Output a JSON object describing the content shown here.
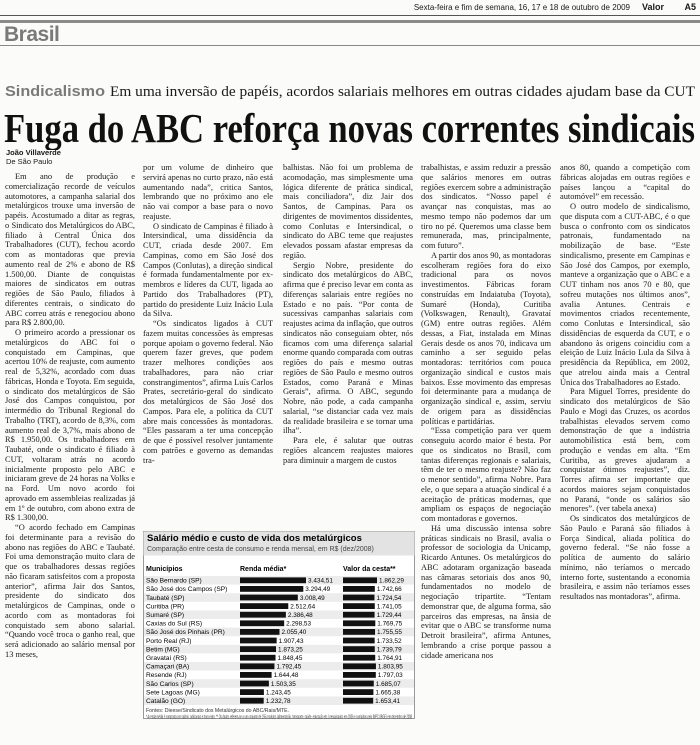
{
  "header": {
    "dateline": "Sexta-feira e fim de semana, 16, 17 e 18 de outubro de 2009",
    "paper": "Valor",
    "page": "A5"
  },
  "section": "Brasil",
  "article": {
    "kicker": "Sindicalismo",
    "deck": "Em uma inversão de papéis, acordos salariais melhores em outras cidades ajudam base da CUT",
    "headline": "Fuga do ABC reforça novas correntes sindicais",
    "author": "João Villaverde",
    "location": "De São Paulo",
    "columns": [
      [
        "Em ano de produção e comercialização recorde de veículos automotores, a campanha salarial dos metalúrgicos trouxe uma inversão de papéis. Acostumado a ditar as regras, o Sindicato dos Metalúrgicos do ABC, filiado à Central Única dos Trabalhadores (CUT), fechou acordo com as montadoras que previa aumento real de 2% e abono de R$ 1.500,00. Diante de conquistas maiores de sindicatos em outras regiões de São Paulo, filiados à diferentes centrais, o sindicato do ABC correu atrás e renegociou abono para R$ 2.800,00.",
        "O primeiro acordo a pressionar os metalúrgicos do ABC foi o conquistado em Campinas, que acertou 10% de reajuste, com aumento real de 5,32%, acordado com duas fábricas, Honda e Toyota. Em seguida, o sindicato dos metalúrgicos de São José dos Campos conquistou, por intermédio do Tribunal Regional do Trabalho (TRT), acordo de 8,3%, com aumento real de 3,7%, mais abono de R$ 1.950,00. Os trabalhadores em Taubaté, onde o sindicato é filiado à CUT, voltaram atrás no acordo inicialmente proposto pelo ABC e iniciaram greve de 24 horas na Volks e na Ford. Um novo acordo foi aprovado em assembleias realizadas já em 1º de outubro, com abono extra de R$ 1.300,00.",
        "“O acordo fechado em Campinas foi determinante para a revisão do abono nas regiões do ABC e Taubaté. Foi uma demonstração muito clara de que os trabalhadores dessas regiões não ficaram satisfeitos com a proposta anterior”, afirma Jair dos Santos, presidente do sindicato dos metalúrgicos de Campinas, onde o acordo com as montadoras foi conquistado sem abono salarial. “Quando você troca o ganho real, que será adicionado ao salário mensal por 13 meses,"
      ],
      [
        "por um volume de dinheiro que servirá apenas no curto prazo, não está aumentando nada”, critica Santos, lembrando que no próximo ano ele não vai compor a base para o novo reajuste.",
        "O sindicato de Campinas é filiado à Intersindical, uma dissidência da CUT, criada desde 2007. Em Campinas, como em São José dos Campos (Conlutas), a direção sindical é formada fundamentalmente por ex-membros e líderes da CUT, ligada ao Partido dos Trabalhadores (PT), partido do presidente Luiz Inácio Lula da Silva.",
        "“Os sindicatos ligados à CUT fazem muitas concessões às empresas porque apoiam o governo federal. Não querem fazer greves, que podem trazer melhores condições aos trabalhadores, para não criar constrangimentos”, afirma Luís Carlos Prates, secretário-geral do sindicato dos metalúrgicos de São José dos Campos. Para ele, a política da CUT abre mais concessões às montadoras. “Eles passaram a ter uma concepção de que é possível resolver juntamente com patrões e governo as demandas tra-"
      ],
      [
        "balhistas. Não foi um problema de acomodação, mas simplesmente uma lógica diferente de prática sindical, mais conciliadora”, diz Jair dos Santos, de Campinas. Para os dirigentes de movimentos dissidentes, como Conlutas e Intersindical, o sindicato do ABC teme que reajustes elevados possam afastar empresas da região.",
        "Sergio Nobre, presidente do sindicato dos metalúrgicos do ABC, afirma que é preciso levar em conta as diferenças salariais entre regiões no Estado e no país. “Por conta de sucessivas campanhas salariais com reajustes acima da inflação, que outros sindicatos não conseguiam obter, nós ficamos com uma diferença salarial enorme quando comparada com outras regiões do país e mesmo outras regiões de São Paulo e mesmo outros Estados, como Paraná e Minas Gerais”, afirma. O ABC, segundo Nobre, não pode, a cada campanha salarial, “se distanciar cada vez mais da realidade brasileira e se tornar uma ilha”.",
        "Para ele, é salutar que outras regiões alcancem reajustes maiores para diminuir a margem de custos"
      ],
      [
        "trabalhistas, e assim reduzir a pressão que salários menores em outras regiões exercem sobre a administração dos sindicatos. “Nosso papel é avançar nas conquistas, mas ao mesmo tempo não podemos dar um tiro no pé. Queremos uma classe bem remunerada, mas, principalmente, com futuro”.",
        "A partir dos anos 90, as montadoras escolheram regiões fora do eixo tradicional para os novos investimentos. Fábricas foram construídas em Indaiatuba (Toyota), Sumaré (Honda), Curitiba (Volkswagen, Renault), Gravataí (GM) entre outras regiões. Além dessas, a Fiat, instalada em Minas Gerais desde os anos 70, indicava um caminho a ser seguido pelas montadoras: territórios com pouca organização sindical e custos mais baixos. Esse movimento das empresas foi determinante para a mudança de organização sindical e, assim, serviu de origem para as dissidências políticas e partidárias.",
        "“Essa competição para ver quem conseguiu acordo maior é besta. Por que os sindicatos no Brasil, com tantas diferenças regionais e salariais, têm de ter o mesmo reajuste? Não faz o menor sentido”, afirma Nobre. Para ele, o que separa a atuação sindical é a aceitação de práticas modernas, que ampliam os espaços de negociação com montadoras e governos.",
        "Há uma discussão intensa sobre práticas sindicais no Brasil, avalia o professor de sociologia da Unicamp, Ricardo Antunes. Os metalúrgicos do ABC adotaram organização baseada nas câmaras setoriais dos anos 90, fundamentados no modelo de negociação tripartite. “Tentam demonstrar que, de alguma forma, são parceiros das empresas, na ânsia de evitar que o ABC se transforme numa Detroit brasileira”, afirma Antunes, lembrando a crise porque passou a cidade americana nos"
      ],
      [
        "anos 80, quando a competição com fábricas alojadas em outras regiões e países lançou a “capital do automóvel” em recessão.",
        "O outro modelo de sindicalismo, que disputa com a CUT-ABC, é o que busca o confronto com os sindicatos patronais, fundamentado na mobilização de base. “Este sindicalismo, presente em Campinas e São José dos Campos, por exemplo, manteve a organização que o ABC e a CUT tinham nos anos 70 e 80, que sofreu mutações nos últimos anos”, avalia Antunes. Centrais e movimentos criados recentemente, como Conlutas e Intersindical, são dissidências de esquerda da CUT, e o abandono às origens coincidiu com a eleição de Luiz Inácio Lula da Silva à presidência da República, em 2002, que atrelou ainda mais a Central Única dos Trabalhadores ao Estado.",
        "Para Miguel Torres, presidente do sindicato dos metalúrgicos de São Paulo e Mogi das Cruzes, os acordos trabalhistas elevados servem como demonstração de que a indústria automobilística está bem, com produção e vendas em alta. “Em Curitiba, as greves ajudaram a conquistar ótimos reajustes”, diz. Torres afirma ser importante que acordos maiores sejam conquistados no Paraná, “onde os salários são menores”. (ver tabela anexa)",
        "Os sindicatos dos metalúrgicos de São Paulo e Paraná são filiados à Força Sindical, aliada política do governo federal. “Se não fosse a política de aumento do salário mínimo, não teríamos o mercado interno forte, sustentando a economia brasileira, e assim não teríamos esses resultados nas montadoras”, afirma."
      ]
    ]
  },
  "infographic": {
    "title": "Salário médio e custo de vida dos metalúrgicos",
    "subtitle": "Comparação entre cesta de consumo e renda mensal, em R$ (dez/2008)",
    "headers": [
      "Municípios",
      "Renda média*",
      "Valor da cesta**"
    ],
    "categories": [
      "São Bernardo (SP)",
      "São José dos Campos (SP)",
      "Taubaté (SP)",
      "Curitiba (PR)",
      "Sumaré (SP)",
      "Caxias do Sul (RS)",
      "São José dos Pinhais (PR)",
      "Porto Real (RJ)",
      "Betim (MG)",
      "Gravataí (RS)",
      "Camaçari (BA)",
      "Resende (RJ)",
      "São Carlos (SP)",
      "Sete Lagoas (MG)",
      "Catalão (GO)"
    ],
    "income": {
      "color": "#111111",
      "values": [
        3434.51,
        3294.49,
        3008.49,
        2512.64,
        2386.48,
        2298.53,
        2055.4,
        1907.43,
        1873.25,
        1848.45,
        1792.45,
        1644.48,
        1503.35,
        1243.45,
        1232.78
      ],
      "value_labels": [
        "3.434,51",
        "3.294,49",
        "3.008,49",
        "2.512,64",
        "2.386,48",
        "2.298,53",
        "2.055,40",
        "1.907,43",
        "1.873,25",
        "1.848,45",
        "1.792,45",
        "1.644,48",
        "1.503,35",
        "1.243,45",
        "1.232,78"
      ]
    },
    "basket": {
      "color": "#111111",
      "values": [
        1862.29,
        1742.66,
        1724.54,
        1741.05,
        1729.44,
        1769.75,
        1755.55,
        1733.52,
        1739.79,
        1764.91,
        1803.95,
        1797.03,
        1685.07,
        1665.38,
        1653.41
      ],
      "value_labels": [
        "1.862,29",
        "1.742,66",
        "1.724,54",
        "1.741,05",
        "1.729,44",
        "1.769,75",
        "1.755,55",
        "1.733,52",
        "1.739,79",
        "1.764,91",
        "1.803,95",
        "1.797,03",
        "1.685,07",
        "1.665,38",
        "1.653,41"
      ]
    },
    "source": "Fontes: Dieese/Sindicato dos Metalúrgicos do ABC/Rais/MTE.",
    "notes": "* A renda média é composta por salário, adicionais e hora extra. ** Os dados referem-se a um conjunto de 155 produtos (alimentação, transporte, saúde, educação etc.) pesquisados em 2006 e corrigidos pelo INPC (IBGE) em dezembro de 2008"
  }
}
